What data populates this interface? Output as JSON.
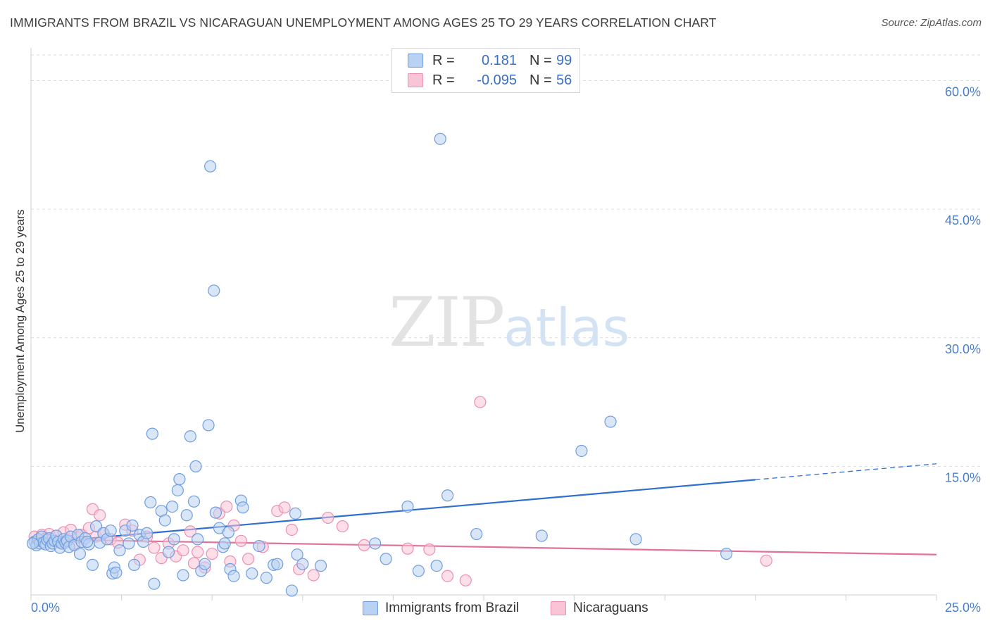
{
  "title": "IMMIGRANTS FROM BRAZIL VS NICARAGUAN UNEMPLOYMENT AMONG AGES 25 TO 29 YEARS CORRELATION CHART",
  "source": "Source: ZipAtlas.com",
  "watermark": {
    "zip": "ZIP",
    "atlas": "atlas"
  },
  "legend": {
    "rows": [
      {
        "r_label": "R =",
        "r_value": "0.181",
        "n_label": "N =",
        "n_value": "99"
      },
      {
        "r_label": "R =",
        "r_value": "-0.095",
        "n_label": "N =",
        "n_value": "56"
      }
    ]
  },
  "bottom_legend": [
    "Immigrants from Brazil",
    "Nicaraguans"
  ],
  "colors": {
    "blue_fill": "#b9d1f3",
    "blue_stroke": "#6f9de0",
    "blue_line": "#2f6fd0",
    "pink_fill": "#f9c4d6",
    "pink_stroke": "#ec8fb0",
    "pink_line": "#e2709a",
    "axis_label": "#4a7fcc",
    "grid": "#dcdcdc"
  },
  "chart_data": {
    "type": "scatter",
    "title": "IMMIGRANTS FROM BRAZIL VS NICARAGUAN UNEMPLOYMENT AMONG AGES 25 TO 29 YEARS CORRELATION CHART",
    "xlabel": "",
    "ylabel": "Unemployment Among Ages 25 to 29 years",
    "xlim": [
      0,
      25
    ],
    "ylim": [
      0,
      63
    ],
    "x_tick_labels": [
      "0.0%",
      "25.0%"
    ],
    "y_ticks": [
      15,
      30,
      45,
      60
    ],
    "y_tick_labels": [
      "15.0%",
      "30.0%",
      "45.0%",
      "60.0%"
    ],
    "grid": true,
    "series": [
      {
        "name": "Immigrants from Brazil",
        "points": [
          [
            0.1,
            6.2
          ],
          [
            0.15,
            5.8
          ],
          [
            0.2,
            6.5
          ],
          [
            0.25,
            6.0
          ],
          [
            0.3,
            6.8
          ],
          [
            0.35,
            6.1
          ],
          [
            0.4,
            5.9
          ],
          [
            0.45,
            6.4
          ],
          [
            0.5,
            6.6
          ],
          [
            0.55,
            5.7
          ],
          [
            0.6,
            6.0
          ],
          [
            0.65,
            6.3
          ],
          [
            0.7,
            6.9
          ],
          [
            0.75,
            6.2
          ],
          [
            0.8,
            5.5
          ],
          [
            0.85,
            6.0
          ],
          [
            0.9,
            6.5
          ],
          [
            0.95,
            6.1
          ],
          [
            1.0,
            6.3
          ],
          [
            1.05,
            5.6
          ],
          [
            1.1,
            6.8
          ],
          [
            1.2,
            5.8
          ],
          [
            1.3,
            7.0
          ],
          [
            1.35,
            4.8
          ],
          [
            1.4,
            6.2
          ],
          [
            1.5,
            6.6
          ],
          [
            1.6,
            5.9
          ],
          [
            1.7,
            3.5
          ],
          [
            1.8,
            8.0
          ],
          [
            1.9,
            6.1
          ],
          [
            2.0,
            7.2
          ],
          [
            2.1,
            6.5
          ],
          [
            2.2,
            7.5
          ],
          [
            2.25,
            2.5
          ],
          [
            2.3,
            3.2
          ],
          [
            2.35,
            2.6
          ],
          [
            2.45,
            5.2
          ],
          [
            2.6,
            7.5
          ],
          [
            2.7,
            6.0
          ],
          [
            2.8,
            8.1
          ],
          [
            2.85,
            3.5
          ],
          [
            3.0,
            7.0
          ],
          [
            3.1,
            6.2
          ],
          [
            3.2,
            7.2
          ],
          [
            3.3,
            10.8
          ],
          [
            3.35,
            18.8
          ],
          [
            3.4,
            1.3
          ],
          [
            3.6,
            9.8
          ],
          [
            3.7,
            8.7
          ],
          [
            3.8,
            5.0
          ],
          [
            3.9,
            10.3
          ],
          [
            3.95,
            6.5
          ],
          [
            4.05,
            12.2
          ],
          [
            4.1,
            13.5
          ],
          [
            4.2,
            2.3
          ],
          [
            4.3,
            9.3
          ],
          [
            4.4,
            18.5
          ],
          [
            4.5,
            10.9
          ],
          [
            4.55,
            15.0
          ],
          [
            4.6,
            6.5
          ],
          [
            4.7,
            2.8
          ],
          [
            4.8,
            3.6
          ],
          [
            4.9,
            19.8
          ],
          [
            5.1,
            9.6
          ],
          [
            5.2,
            7.8
          ],
          [
            5.3,
            5.6
          ],
          [
            5.35,
            6.0
          ],
          [
            5.45,
            7.3
          ],
          [
            5.5,
            3.0
          ],
          [
            5.6,
            2.2
          ],
          [
            5.8,
            11.0
          ],
          [
            5.85,
            10.2
          ],
          [
            6.1,
            2.5
          ],
          [
            6.3,
            5.7
          ],
          [
            6.5,
            2.0
          ],
          [
            6.7,
            3.5
          ],
          [
            6.8,
            3.6
          ],
          [
            7.2,
            0.5
          ],
          [
            7.3,
            9.5
          ],
          [
            7.35,
            4.7
          ],
          [
            7.5,
            3.6
          ],
          [
            8.0,
            3.4
          ],
          [
            9.5,
            6.0
          ],
          [
            9.8,
            4.2
          ],
          [
            10.4,
            10.3
          ],
          [
            10.7,
            2.8
          ],
          [
            11.2,
            3.4
          ],
          [
            11.5,
            11.6
          ],
          [
            12.3,
            7.1
          ],
          [
            14.1,
            6.9
          ],
          [
            15.2,
            16.8
          ],
          [
            16.0,
            20.2
          ],
          [
            16.7,
            6.5
          ],
          [
            19.2,
            4.8
          ],
          [
            5.05,
            35.5
          ],
          [
            4.95,
            50.0
          ],
          [
            11.3,
            53.2
          ],
          [
            1.55,
            6.2
          ],
          [
            0.05,
            6.0
          ]
        ]
      },
      {
        "name": "Nicaraguans",
        "points": [
          [
            0.1,
            6.8
          ],
          [
            0.2,
            6.3
          ],
          [
            0.3,
            7.0
          ],
          [
            0.4,
            6.6
          ],
          [
            0.5,
            7.1
          ],
          [
            0.6,
            6.5
          ],
          [
            0.7,
            6.9
          ],
          [
            0.8,
            6.2
          ],
          [
            0.9,
            7.3
          ],
          [
            1.0,
            6.4
          ],
          [
            1.1,
            7.6
          ],
          [
            1.2,
            6.0
          ],
          [
            1.3,
            6.7
          ],
          [
            1.4,
            7.0
          ],
          [
            1.6,
            7.8
          ],
          [
            1.7,
            10.0
          ],
          [
            1.8,
            6.8
          ],
          [
            1.9,
            9.3
          ],
          [
            2.0,
            7.2
          ],
          [
            2.2,
            6.5
          ],
          [
            2.4,
            6.1
          ],
          [
            2.6,
            8.2
          ],
          [
            2.8,
            7.5
          ],
          [
            3.0,
            4.1
          ],
          [
            3.2,
            6.8
          ],
          [
            3.4,
            5.5
          ],
          [
            3.6,
            4.3
          ],
          [
            3.8,
            6.0
          ],
          [
            4.0,
            4.5
          ],
          [
            4.2,
            5.2
          ],
          [
            4.4,
            7.4
          ],
          [
            4.5,
            3.7
          ],
          [
            4.6,
            5.0
          ],
          [
            4.8,
            3.2
          ],
          [
            5.0,
            4.8
          ],
          [
            5.2,
            9.5
          ],
          [
            5.4,
            10.3
          ],
          [
            5.5,
            3.9
          ],
          [
            5.6,
            8.1
          ],
          [
            5.8,
            6.3
          ],
          [
            6.0,
            4.2
          ],
          [
            6.4,
            5.6
          ],
          [
            6.8,
            9.8
          ],
          [
            7.0,
            10.2
          ],
          [
            7.2,
            7.6
          ],
          [
            7.4,
            3.0
          ],
          [
            7.8,
            2.3
          ],
          [
            8.2,
            9.0
          ],
          [
            8.6,
            8.0
          ],
          [
            9.2,
            5.8
          ],
          [
            10.4,
            5.4
          ],
          [
            11.0,
            5.3
          ],
          [
            11.5,
            2.2
          ],
          [
            12.0,
            1.7
          ],
          [
            12.4,
            22.5
          ],
          [
            20.3,
            4.0
          ]
        ]
      }
    ],
    "trend_lines": [
      {
        "name": "Immigrants from Brazil",
        "x": [
          0,
          25
        ],
        "y": [
          6.0,
          15.3
        ],
        "solid_until_x": 20.0
      },
      {
        "name": "Nicaraguans",
        "x": [
          0,
          25
        ],
        "y": [
          6.5,
          4.7
        ]
      }
    ]
  }
}
